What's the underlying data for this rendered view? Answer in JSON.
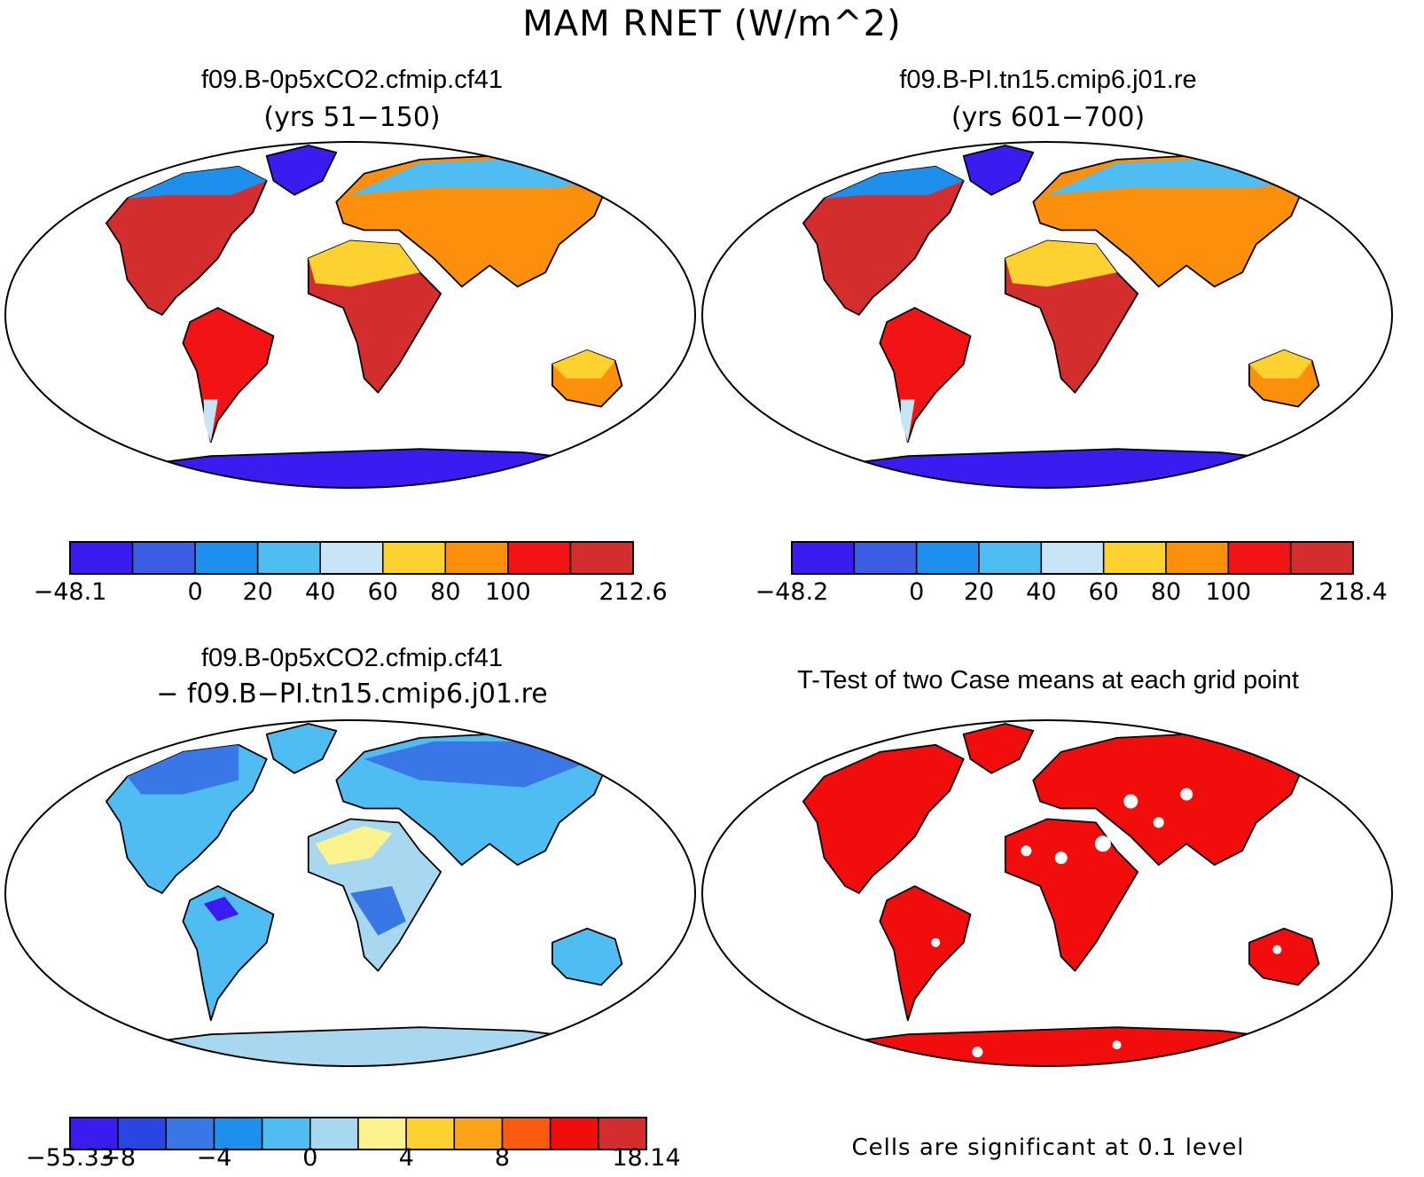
{
  "title": "MAM RNET (W/m^2)",
  "colors": {
    "ocean": "#ffffff",
    "coast": "#000000",
    "sig": "#f20d0d"
  },
  "panels": [
    {
      "id": "p1",
      "title": "f09.B-0p5xCO2.cfmip.cf41",
      "subtitle": "(yrs 51−150)",
      "colorbar": {
        "colors": [
          "#3b1cf0",
          "#3a5de3",
          "#1e8fed",
          "#4fbdf2",
          "#c7e5f7",
          "#fdd12f",
          "#fc8f0c",
          "#f21414",
          "#d42d2d"
        ],
        "ticks": [
          "−48.1",
          "",
          "0",
          "20",
          "40",
          "60",
          "80",
          "100",
          "",
          "212.6"
        ]
      }
    },
    {
      "id": "p2",
      "title": "f09.B-PI.tn15.cmip6.j01.re",
      "subtitle": "(yrs 601−700)",
      "colorbar": {
        "colors": [
          "#3b1cf0",
          "#3a5de3",
          "#1e8fed",
          "#4fbdf2",
          "#c7e5f7",
          "#fdd12f",
          "#fc8f0c",
          "#f21414",
          "#d42d2d"
        ],
        "ticks": [
          "−48.2",
          "",
          "0",
          "20",
          "40",
          "60",
          "80",
          "100",
          "",
          "218.4"
        ]
      }
    },
    {
      "id": "p3",
      "title": "f09.B-0p5xCO2.cfmip.cf41",
      "subtitle": "− f09.B−PI.tn15.cmip6.j01.re",
      "colorbar": {
        "colors": [
          "#3b1cf0",
          "#2a45e6",
          "#3a77e6",
          "#1e8fed",
          "#4fbdf2",
          "#a8d8f0",
          "#fdf38e",
          "#fdd12f",
          "#fca319",
          "#fc5a10",
          "#f20d0d",
          "#d42d2d"
        ],
        "ticks": [
          "−55.33",
          "−8",
          "",
          "−4",
          "",
          "0",
          "",
          "4",
          "",
          "8",
          "",
          "",
          "18.14"
        ]
      }
    },
    {
      "id": "p4",
      "title": "T-Test of two Case means at each grid point",
      "footnote": "Cells are significant at 0.1 level"
    }
  ]
}
